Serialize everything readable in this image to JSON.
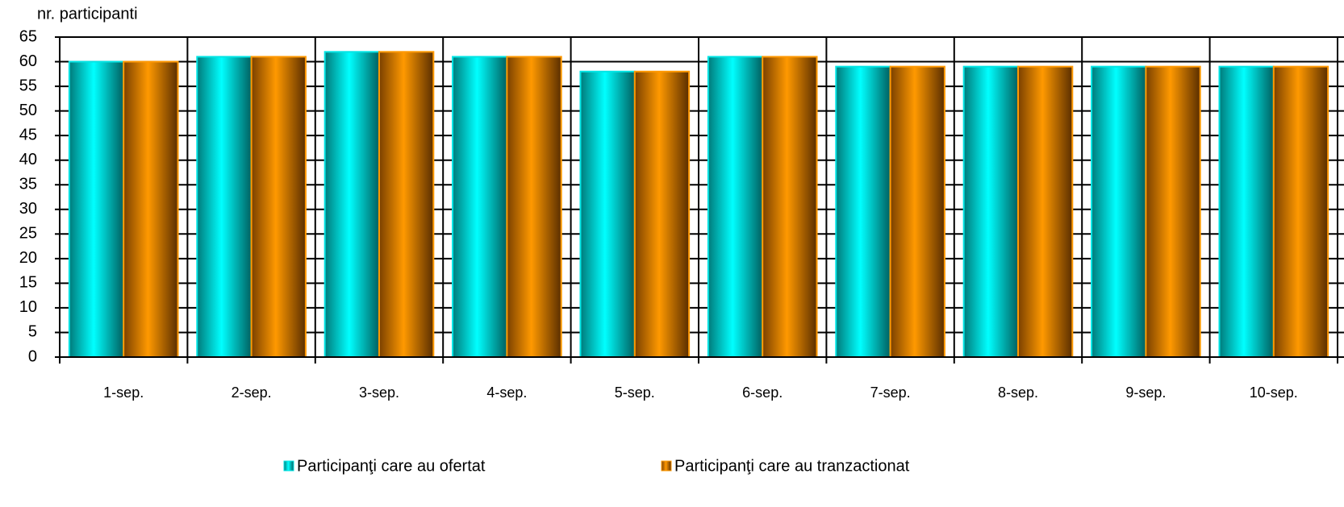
{
  "chart_data": {
    "type": "bar",
    "y_label": "nr. participanti",
    "categories": [
      "1-sep.",
      "2-sep.",
      "3-sep.",
      "4-sep.",
      "5-sep.",
      "6-sep.",
      "7-sep.",
      "8-sep.",
      "9-sep.",
      "10-sep."
    ],
    "series": [
      {
        "name": "Participanţi care au ofertat",
        "color": "#00e5e5",
        "values": [
          60,
          61,
          62,
          61,
          58,
          61,
          59,
          59,
          59,
          59
        ]
      },
      {
        "name": "Participanţi care au tranzactionat",
        "color": "#ff9900",
        "values": [
          60,
          61,
          62,
          61,
          58,
          61,
          59,
          59,
          59,
          59
        ]
      }
    ],
    "ylim": [
      0,
      65
    ],
    "yticks": [
      0,
      5,
      10,
      15,
      20,
      25,
      30,
      35,
      40,
      45,
      50,
      55,
      60,
      65
    ],
    "grid": true
  }
}
